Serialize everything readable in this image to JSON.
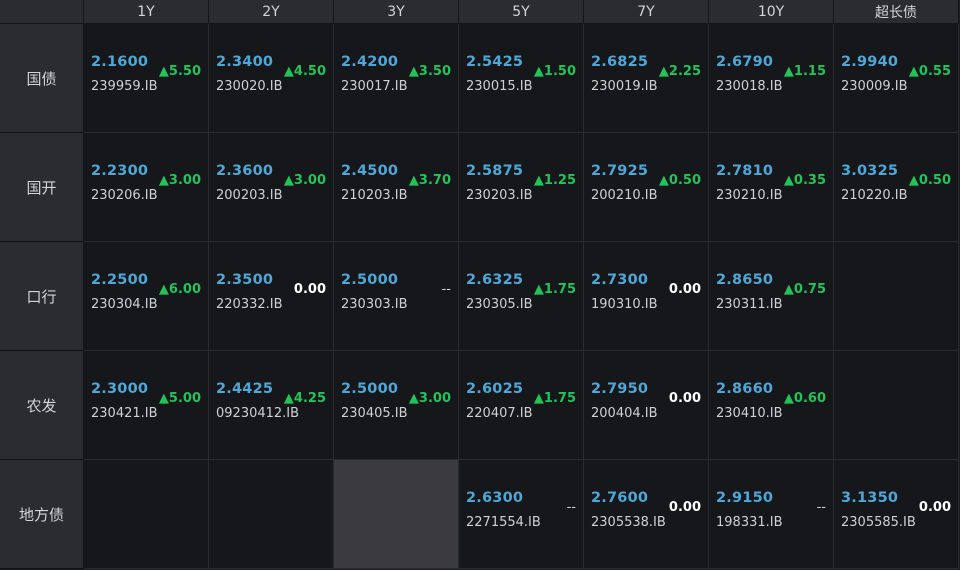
{
  "columns": [
    "1Y",
    "2Y",
    "3Y",
    "5Y",
    "7Y",
    "10Y",
    "超长债"
  ],
  "rows": [
    {
      "label": "国债",
      "cells": [
        {
          "rate": "2.1600",
          "code": "239959.IB",
          "change": "▲5.50",
          "dir": "up"
        },
        {
          "rate": "2.3400",
          "code": "230020.IB",
          "change": "▲4.50",
          "dir": "up"
        },
        {
          "rate": "2.4200",
          "code": "230017.IB",
          "change": "▲3.50",
          "dir": "up"
        },
        {
          "rate": "2.5425",
          "code": "230015.IB",
          "change": "▲1.50",
          "dir": "up"
        },
        {
          "rate": "2.6825",
          "code": "230019.IB",
          "change": "▲2.25",
          "dir": "up"
        },
        {
          "rate": "2.6790",
          "code": "230018.IB",
          "change": "▲1.15",
          "dir": "up"
        },
        {
          "rate": "2.9940",
          "code": "230009.IB",
          "change": "▲0.55",
          "dir": "up"
        }
      ]
    },
    {
      "label": "国开",
      "cells": [
        {
          "rate": "2.2300",
          "code": "230206.IB",
          "change": "▲3.00",
          "dir": "up"
        },
        {
          "rate": "2.3600",
          "code": "200203.IB",
          "change": "▲3.00",
          "dir": "up"
        },
        {
          "rate": "2.4500",
          "code": "210203.IB",
          "change": "▲3.70",
          "dir": "up"
        },
        {
          "rate": "2.5875",
          "code": "230203.IB",
          "change": "▲1.25",
          "dir": "up"
        },
        {
          "rate": "2.7925",
          "code": "200210.IB",
          "change": "▲0.50",
          "dir": "up"
        },
        {
          "rate": "2.7810",
          "code": "230210.IB",
          "change": "▲0.35",
          "dir": "up"
        },
        {
          "rate": "3.0325",
          "code": "210220.IB",
          "change": "▲0.50",
          "dir": "up"
        }
      ]
    },
    {
      "label": "口行",
      "cells": [
        {
          "rate": "2.2500",
          "code": "230304.IB",
          "change": "▲6.00",
          "dir": "up"
        },
        {
          "rate": "2.3500",
          "code": "220332.IB",
          "change": "0.00",
          "dir": "flat"
        },
        {
          "rate": "2.5000",
          "code": "230303.IB",
          "change": "--",
          "dir": "dash"
        },
        {
          "rate": "2.6325",
          "code": "230305.IB",
          "change": "▲1.75",
          "dir": "up"
        },
        {
          "rate": "2.7300",
          "code": "190310.IB",
          "change": "0.00",
          "dir": "flat"
        },
        {
          "rate": "2.8650",
          "code": "230311.IB",
          "change": "▲0.75",
          "dir": "up"
        },
        {
          "rate": "",
          "code": "",
          "change": "",
          "dir": "blank"
        }
      ]
    },
    {
      "label": "农发",
      "cells": [
        {
          "rate": "2.3000",
          "code": "230421.IB",
          "change": "▲5.00",
          "dir": "up"
        },
        {
          "rate": "2.4425",
          "code": "09230412.IB",
          "change": "▲4.25",
          "dir": "up"
        },
        {
          "rate": "2.5000",
          "code": "230405.IB",
          "change": "▲3.00",
          "dir": "up"
        },
        {
          "rate": "2.6025",
          "code": "220407.IB",
          "change": "▲1.75",
          "dir": "up"
        },
        {
          "rate": "2.7950",
          "code": "200404.IB",
          "change": "0.00",
          "dir": "flat"
        },
        {
          "rate": "2.8660",
          "code": "230410.IB",
          "change": "▲0.60",
          "dir": "up"
        },
        {
          "rate": "",
          "code": "",
          "change": "",
          "dir": "blank"
        }
      ]
    },
    {
      "label": "地方债",
      "cells": [
        {
          "rate": "",
          "code": "",
          "change": "",
          "dir": "blank"
        },
        {
          "rate": "",
          "code": "",
          "change": "",
          "dir": "blank"
        },
        {
          "rate": "",
          "code": "",
          "change": "",
          "dir": "grey"
        },
        {
          "rate": "2.6300",
          "code": "2271554.IB",
          "change": "--",
          "dir": "dash"
        },
        {
          "rate": "2.7600",
          "code": "2305538.IB",
          "change": "0.00",
          "dir": "flat"
        },
        {
          "rate": "2.9150",
          "code": "198331.IB",
          "change": "--",
          "dir": "dash"
        },
        {
          "rate": "3.1350",
          "code": "2305585.IB",
          "change": "0.00",
          "dir": "flat"
        }
      ]
    }
  ],
  "colors": {
    "rate": "#4fa7d8",
    "up": "#23c35a",
    "flat": "#ffffff",
    "cell_bg": "#15171a",
    "header_bg": "#2b2c30"
  }
}
